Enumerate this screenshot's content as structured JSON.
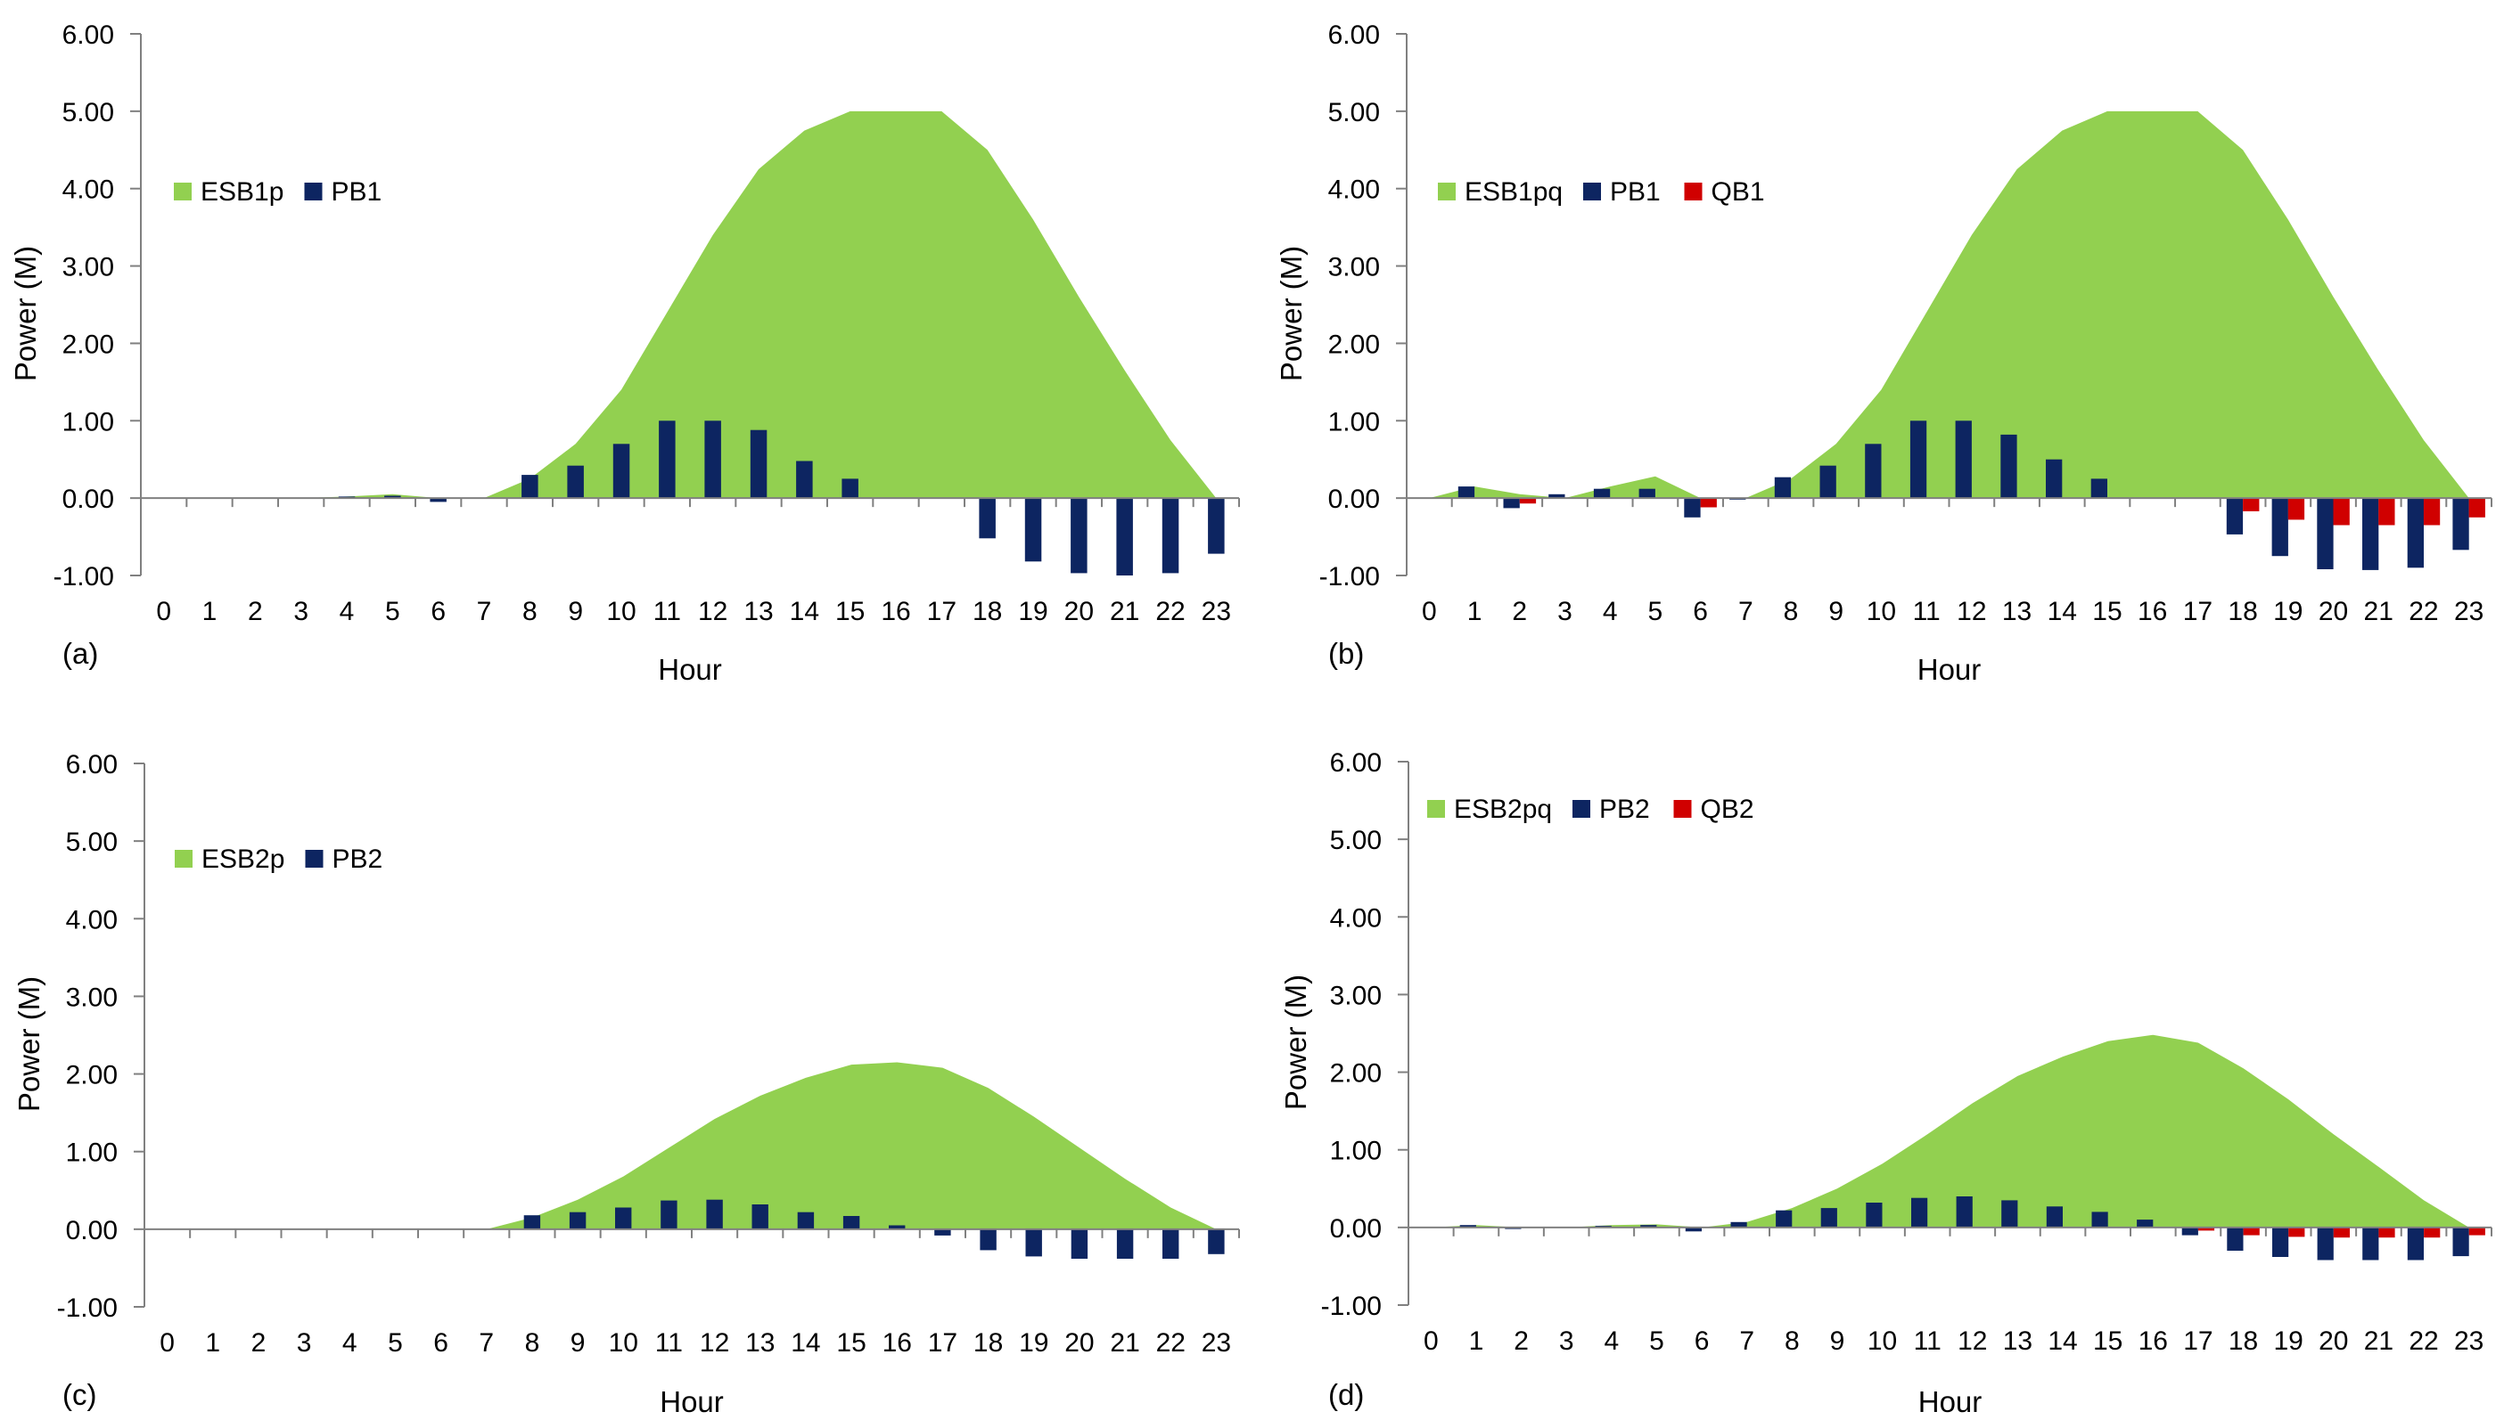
{
  "colors": {
    "area": "#92d050",
    "p_bar": "#0d2561",
    "q_bar": "#d00000",
    "axis": "#808080"
  },
  "chart_data": [
    {
      "type": "bar",
      "panel_label": "(a)",
      "xlabel": "Hour",
      "ylabel": "Power (M)",
      "ylim": [
        -1.0,
        6.0
      ],
      "yticks": [
        "6.00",
        "5.00",
        "4.00",
        "3.00",
        "2.00",
        "1.00",
        "0.00",
        "-1.00"
      ],
      "categories": [
        "0",
        "1",
        "2",
        "3",
        "4",
        "5",
        "6",
        "7",
        "8",
        "9",
        "10",
        "11",
        "12",
        "13",
        "14",
        "15",
        "16",
        "17",
        "18",
        "19",
        "20",
        "21",
        "22",
        "23"
      ],
      "legend_position": "top-left",
      "area": {
        "name": "ESB1p",
        "values": [
          0,
          0,
          0,
          0,
          0.02,
          0.05,
          0,
          0,
          0.25,
          0.7,
          1.4,
          2.4,
          3.4,
          4.25,
          4.75,
          5.0,
          5.0,
          5.0,
          4.5,
          3.6,
          2.6,
          1.65,
          0.75,
          0
        ]
      },
      "series": [
        {
          "name": "PB1",
          "kind": "p",
          "values": [
            0,
            0,
            0,
            0,
            0.02,
            0.03,
            -0.05,
            0,
            0.3,
            0.42,
            0.7,
            1.0,
            1.0,
            0.88,
            0.48,
            0.25,
            0,
            0,
            -0.52,
            -0.82,
            -0.97,
            -1.0,
            -0.97,
            -0.72
          ]
        }
      ]
    },
    {
      "type": "bar",
      "panel_label": "(b)",
      "xlabel": "Hour",
      "ylabel": "Power (M)",
      "ylim": [
        -1.0,
        6.0
      ],
      "yticks": [
        "6.00",
        "5.00",
        "4.00",
        "3.00",
        "2.00",
        "1.00",
        "0.00",
        "-1.00"
      ],
      "categories": [
        "0",
        "1",
        "2",
        "3",
        "4",
        "5",
        "6",
        "7",
        "8",
        "9",
        "10",
        "11",
        "12",
        "13",
        "14",
        "15",
        "16",
        "17",
        "18",
        "19",
        "20",
        "21",
        "22",
        "23"
      ],
      "legend_position": "top-left",
      "area": {
        "name": "ESB1pq",
        "values": [
          0,
          0.15,
          0.05,
          0,
          0.15,
          0.28,
          0,
          0,
          0.25,
          0.7,
          1.4,
          2.4,
          3.4,
          4.25,
          4.75,
          5.0,
          5.0,
          5.0,
          4.5,
          3.6,
          2.6,
          1.65,
          0.75,
          0
        ]
      },
      "series": [
        {
          "name": "PB1",
          "kind": "p",
          "values": [
            0,
            0.15,
            -0.13,
            0.05,
            0.12,
            0.12,
            -0.25,
            -0.02,
            0.27,
            0.42,
            0.7,
            1.0,
            1.0,
            0.82,
            0.5,
            0.25,
            0,
            0,
            -0.47,
            -0.75,
            -0.92,
            -0.93,
            -0.9,
            -0.67
          ]
        },
        {
          "name": "QB1",
          "kind": "q",
          "values": [
            0,
            0,
            -0.07,
            0,
            0,
            0,
            -0.12,
            0,
            0,
            0,
            0,
            0,
            0,
            0,
            0,
            0,
            0,
            0,
            -0.17,
            -0.28,
            -0.35,
            -0.35,
            -0.35,
            -0.25
          ]
        }
      ]
    },
    {
      "type": "bar",
      "panel_label": "(c)",
      "xlabel": "Hour",
      "ylabel": "Power (M)",
      "ylim": [
        -1.0,
        6.0
      ],
      "yticks": [
        "6.00",
        "5.00",
        "4.00",
        "3.00",
        "2.00",
        "1.00",
        "0.00",
        "-1.00"
      ],
      "categories": [
        "0",
        "1",
        "2",
        "3",
        "4",
        "5",
        "6",
        "7",
        "8",
        "9",
        "10",
        "11",
        "12",
        "13",
        "14",
        "15",
        "16",
        "17",
        "18",
        "19",
        "20",
        "21",
        "22",
        "23"
      ],
      "legend_position": "top-left",
      "area": {
        "name": "ESB2p",
        "values": [
          0,
          0,
          0,
          0,
          0,
          0,
          0,
          0,
          0.15,
          0.38,
          0.68,
          1.05,
          1.42,
          1.72,
          1.95,
          2.12,
          2.15,
          2.08,
          1.82,
          1.45,
          1.05,
          0.65,
          0.28,
          0
        ]
      },
      "series": [
        {
          "name": "PB2",
          "kind": "p",
          "values": [
            0,
            0,
            0,
            0,
            0,
            0,
            0,
            0,
            0.18,
            0.22,
            0.28,
            0.37,
            0.38,
            0.32,
            0.22,
            0.17,
            0.05,
            -0.08,
            -0.27,
            -0.35,
            -0.38,
            -0.38,
            -0.38,
            -0.32
          ]
        }
      ]
    },
    {
      "type": "bar",
      "panel_label": "(d)",
      "xlabel": "Hour",
      "ylabel": "Power (M)",
      "ylim": [
        -1.0,
        6.0
      ],
      "yticks": [
        "6.00",
        "5.00",
        "4.00",
        "3.00",
        "2.00",
        "1.00",
        "0.00",
        "-1.00"
      ],
      "categories": [
        "0",
        "1",
        "2",
        "3",
        "4",
        "5",
        "6",
        "7",
        "8",
        "9",
        "10",
        "11",
        "12",
        "13",
        "14",
        "15",
        "16",
        "17",
        "18",
        "19",
        "20",
        "21",
        "22",
        "23"
      ],
      "legend_position": "top-left",
      "area": {
        "name": "ESB2pq",
        "values": [
          0,
          0.03,
          0,
          0,
          0.03,
          0.04,
          0,
          0.07,
          0.25,
          0.5,
          0.82,
          1.2,
          1.6,
          1.95,
          2.2,
          2.4,
          2.48,
          2.38,
          2.05,
          1.65,
          1.2,
          0.78,
          0.35,
          0
        ]
      },
      "series": [
        {
          "name": "PB2",
          "kind": "p",
          "values": [
            0,
            0.03,
            -0.02,
            0,
            0.02,
            0.03,
            -0.05,
            0.07,
            0.22,
            0.25,
            0.32,
            0.38,
            0.4,
            0.35,
            0.27,
            0.2,
            0.1,
            -0.1,
            -0.3,
            -0.38,
            -0.42,
            -0.42,
            -0.42,
            -0.37
          ]
        },
        {
          "name": "QB2",
          "kind": "q",
          "values": [
            0,
            0,
            0,
            0,
            0,
            0,
            0,
            0,
            0,
            0,
            0,
            0,
            0,
            0,
            0,
            0,
            0,
            -0.04,
            -0.1,
            -0.12,
            -0.13,
            -0.13,
            -0.13,
            -0.1
          ]
        }
      ]
    }
  ]
}
